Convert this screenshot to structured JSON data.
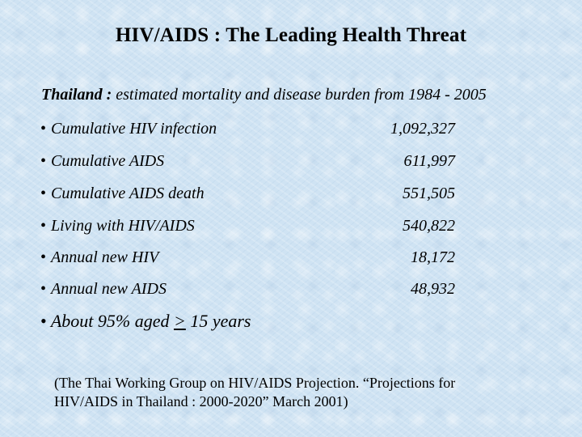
{
  "title": "HIV/AIDS : The Leading Health Threat",
  "subtitle": {
    "country": "Thailand :",
    "text": "estimated mortality and disease burden from 1984 - 2005"
  },
  "bullet": "•",
  "stats": [
    {
      "label": "Cumulative HIV infection",
      "value": "1,092,327"
    },
    {
      "label": "Cumulative AIDS",
      "value": "611,997"
    },
    {
      "label": "Cumulative AIDS death",
      "value": "551,505"
    },
    {
      "label": "Living with HIV/AIDS",
      "value": "540,822"
    },
    {
      "label": "Annual new HIV",
      "value": "18,172"
    },
    {
      "label": "Annual new AIDS",
      "value": "48,932"
    }
  ],
  "note": {
    "before": "About 95% aged",
    "symbol": ">",
    "after": "15 years"
  },
  "citation": {
    "line1": "(The Thai Working Group on HIV/AIDS Projection. “Projections for",
    "line2": "HIV/AIDS in Thailand : 2000-2020” March 2001)"
  }
}
